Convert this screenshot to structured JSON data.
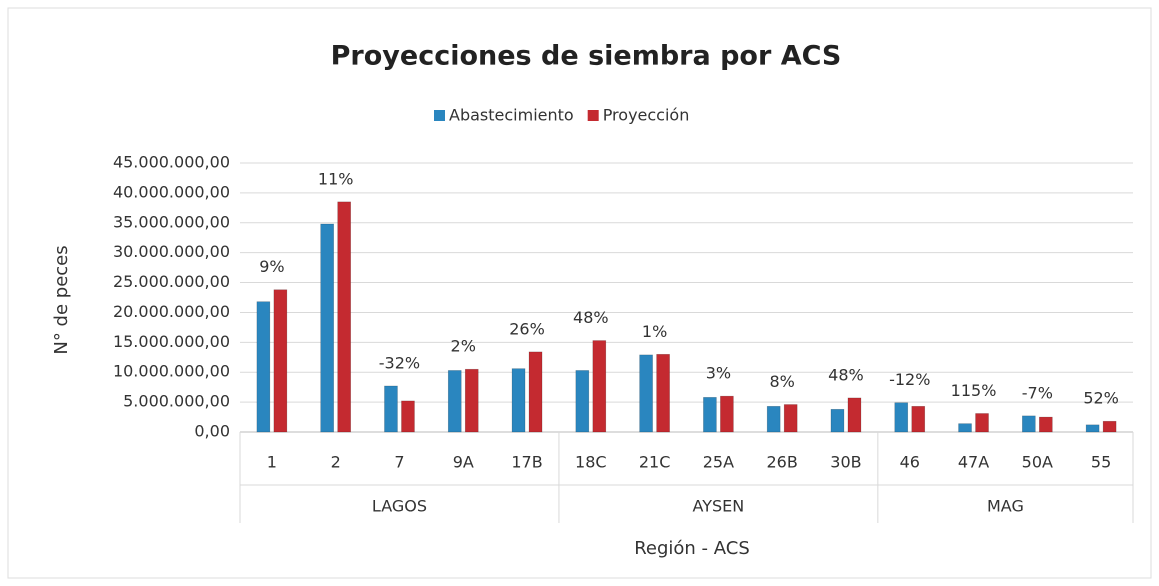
{
  "chart_data": {
    "type": "bar",
    "title": "Proyecciones de siembra por ACS",
    "x_label": "Región - ACS",
    "y_label": "N° de peces",
    "categories": [
      "1",
      "2",
      "7",
      "9A",
      "17B",
      "18C",
      "21C",
      "25A",
      "26B",
      "30B",
      "46",
      "47A",
      "50A",
      "55"
    ],
    "groups": [
      {
        "name": "LAGOS",
        "span": 5
      },
      {
        "name": "AYSEN",
        "span": 5
      },
      {
        "name": "MAG",
        "span": 4
      }
    ],
    "series": [
      {
        "name": "Abastecimiento",
        "color": "#2a86bf",
        "values": [
          21800000,
          34800000,
          7700000,
          10300000,
          10600000,
          10300000,
          12900000,
          5800000,
          4300000,
          3800000,
          4900000,
          1400000,
          2700000,
          1200000
        ]
      },
      {
        "name": "Proyección",
        "color": "#c42a30",
        "values": [
          23800000,
          38500000,
          5200000,
          10500000,
          13400000,
          15300000,
          13000000,
          6000000,
          4600000,
          5700000,
          4300000,
          3100000,
          2500000,
          1800000
        ]
      }
    ],
    "annotations": [
      "9%",
      "11%",
      "-32%",
      "2%",
      "26%",
      "48%",
      "1%",
      "3%",
      "8%",
      "48%",
      "-12%",
      "115%",
      "-7%",
      "52%"
    ],
    "ylim": [
      0,
      45000000
    ],
    "yticks": [
      {
        "value": 0,
        "label": "0,00"
      },
      {
        "value": 5000000,
        "label": "5.000.000,00"
      },
      {
        "value": 10000000,
        "label": "10.000.000,00"
      },
      {
        "value": 15000000,
        "label": "15.000.000,00"
      },
      {
        "value": 20000000,
        "label": "20.000.000,00"
      },
      {
        "value": 25000000,
        "label": "25.000.000,00"
      },
      {
        "value": 30000000,
        "label": "30.000.000,00"
      },
      {
        "value": 35000000,
        "label": "35.000.000,00"
      },
      {
        "value": 40000000,
        "label": "40.000.000,00"
      },
      {
        "value": 45000000,
        "label": "45.000.000,00"
      }
    ],
    "grid": true,
    "legend": "top"
  }
}
